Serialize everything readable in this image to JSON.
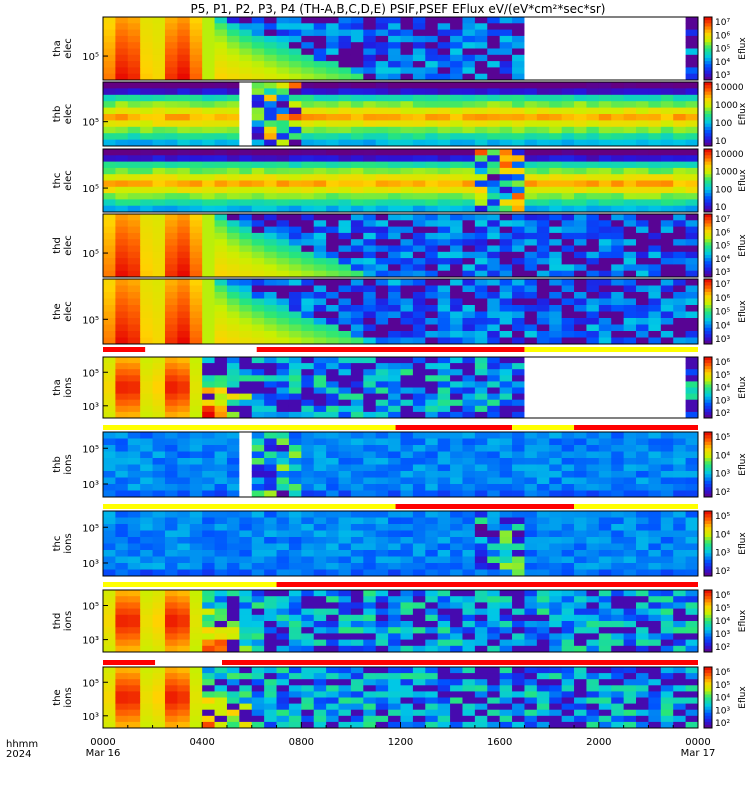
{
  "title": "P5, P1, P2, P3, P4 (TH-A,B,C,D,E) PSIF,PSEF EFlux eV/(eV*cm²*sec*sr)",
  "colorbar_label": "Eflux",
  "time_axis": {
    "row_labels": [
      "hhmm",
      "2024"
    ],
    "ticks": [
      {
        "t": 0,
        "label": "0000",
        "date": "Mar 16"
      },
      {
        "t": 4,
        "label": "0400",
        "date": ""
      },
      {
        "t": 8,
        "label": "0800",
        "date": ""
      },
      {
        "t": 12,
        "label": "1200",
        "date": ""
      },
      {
        "t": 16,
        "label": "1600",
        "date": ""
      },
      {
        "t": 20,
        "label": "2000",
        "date": ""
      },
      {
        "t": 24,
        "label": "0000",
        "date": "Mar 17"
      }
    ],
    "range_hours": [
      0,
      24
    ]
  },
  "chart_data": {
    "type": "heatmap",
    "x_unit": "hours UT, 2024 Mar 16 00:00 to Mar 17 00:00",
    "panels": [
      {
        "name": "tha elec",
        "probe": "tha",
        "species": "elec",
        "ylabel": [
          "tha",
          "elec"
        ],
        "yticks": [
          "10⁵"
        ],
        "cbar_ticks": [
          "10⁷",
          "10⁶",
          "10⁵",
          "10⁴",
          "10³"
        ],
        "cbar_range_log": [
          2.6,
          7.1
        ],
        "profile": "ringplasma",
        "gaps": [
          [
            17.0,
            23.4
          ]
        ]
      },
      {
        "name": "thb elec",
        "probe": "thb",
        "species": "elec",
        "ylabel": [
          "thb",
          "elec"
        ],
        "yticks": [
          "10⁵"
        ],
        "cbar_ticks": [
          "10000",
          "1000",
          "100",
          "10"
        ],
        "cbar_range_log": [
          0.8,
          4.6
        ],
        "profile": "solarwind",
        "gaps": [
          [
            5.7,
            5.9
          ],
          [
            8.0,
            8.2
          ],
          [
            17.0,
            17.2
          ]
        ],
        "noisy": [
          [
            5.9,
            8.0
          ]
        ]
      },
      {
        "name": "thc elec",
        "probe": "thc",
        "species": "elec",
        "ylabel": [
          "thc",
          "elec"
        ],
        "yticks": [
          "10⁵"
        ],
        "cbar_ticks": [
          "10000",
          "1000",
          "100",
          "10"
        ],
        "cbar_range_log": [
          0.8,
          4.6
        ],
        "profile": "solarwind",
        "gaps": [
          [
            17.0,
            17.2
          ]
        ],
        "noisy": [
          [
            15.0,
            17.0
          ]
        ]
      },
      {
        "name": "thd elec",
        "probe": "thd",
        "species": "elec",
        "ylabel": [
          "thd",
          "elec"
        ],
        "yticks": [
          "10⁵"
        ],
        "cbar_ticks": [
          "10⁷",
          "10⁶",
          "10⁵",
          "10⁴",
          "10³"
        ],
        "cbar_range_log": [
          2.6,
          7.1
        ],
        "profile": "ringplasma",
        "gaps": []
      },
      {
        "name": "the elec",
        "probe": "the",
        "species": "elec",
        "ylabel": [
          "the",
          "elec"
        ],
        "yticks": [
          "10⁵"
        ],
        "cbar_ticks": [
          "10⁷",
          "10⁶",
          "10⁵",
          "10⁴",
          "10³"
        ],
        "cbar_range_log": [
          2.6,
          7.1
        ],
        "profile": "ringplasma",
        "gaps": []
      },
      {
        "name": "tha ions",
        "probe": "tha",
        "species": "ions",
        "ylabel": [
          "tha",
          "ions"
        ],
        "yticks": [
          "10⁵",
          "10³"
        ],
        "cbar_ticks": [
          "10⁶",
          "10⁵",
          "10⁴",
          "10³",
          "10²"
        ],
        "cbar_range_log": [
          1.6,
          6.1
        ],
        "profile": "ringions",
        "gaps": [
          [
            17.0,
            23.4
          ]
        ]
      },
      {
        "name": "thb ions",
        "probe": "thb",
        "species": "ions",
        "ylabel": [
          "thb",
          "ions"
        ],
        "yticks": [
          "10⁵",
          "10³"
        ],
        "cbar_ticks": [
          "10⁵",
          "10⁴",
          "10³",
          "10²"
        ],
        "cbar_range_log": [
          1.6,
          5.6
        ],
        "profile": "windions",
        "gaps": [
          [
            5.7,
            5.9
          ],
          [
            8.0,
            8.2
          ]
        ],
        "noisy": [
          [
            5.9,
            8.0
          ]
        ]
      },
      {
        "name": "thc ions",
        "probe": "thc",
        "species": "ions",
        "ylabel": [
          "thc",
          "ions"
        ],
        "yticks": [
          "10⁵",
          "10³"
        ],
        "cbar_ticks": [
          "10⁵",
          "10⁴",
          "10³",
          "10²"
        ],
        "cbar_range_log": [
          1.6,
          5.6
        ],
        "profile": "windions",
        "gaps": [
          [
            17.0,
            17.2
          ]
        ],
        "noisy": [
          [
            15.0,
            17.0
          ]
        ]
      },
      {
        "name": "thd ions",
        "probe": "thd",
        "species": "ions",
        "ylabel": [
          "thd",
          "ions"
        ],
        "yticks": [
          "10⁵",
          "10³"
        ],
        "cbar_ticks": [
          "10⁶",
          "10⁵",
          "10⁴",
          "10³",
          "10²"
        ],
        "cbar_range_log": [
          1.6,
          6.1
        ],
        "profile": "ringions",
        "gaps": []
      },
      {
        "name": "the ions",
        "probe": "the",
        "species": "ions",
        "ylabel": [
          "the",
          "ions"
        ],
        "yticks": [
          "10⁵",
          "10³"
        ],
        "cbar_ticks": [
          "10⁶",
          "10⁵",
          "10⁴",
          "10³",
          "10²"
        ],
        "cbar_range_log": [
          1.6,
          6.1
        ],
        "profile": "ringions",
        "gaps": []
      }
    ],
    "mode_bars": [
      {
        "after_panel": "the elec",
        "segments": [
          {
            "from": 0,
            "to": 1.7,
            "color": "red"
          },
          {
            "from": 6.2,
            "to": 17.0,
            "color": "red"
          },
          {
            "from": 17.0,
            "to": 24,
            "color": "yellow"
          }
        ]
      },
      {
        "after_panel": "tha ions",
        "segments": [
          {
            "from": 0,
            "to": 11.8,
            "color": "yellow"
          },
          {
            "from": 11.8,
            "to": 16.5,
            "color": "red"
          },
          {
            "from": 16.5,
            "to": 19.0,
            "color": "yellow"
          },
          {
            "from": 19.0,
            "to": 24,
            "color": "red"
          }
        ]
      },
      {
        "after_panel": "thb ions",
        "segments": [
          {
            "from": 0,
            "to": 11.8,
            "color": "yellow"
          },
          {
            "from": 11.8,
            "to": 19.0,
            "color": "red"
          },
          {
            "from": 19.0,
            "to": 24,
            "color": "yellow"
          }
        ]
      },
      {
        "after_panel": "thc ions",
        "segments": [
          {
            "from": 0,
            "to": 7.0,
            "color": "yellow"
          },
          {
            "from": 7.0,
            "to": 24,
            "color": "red"
          }
        ]
      },
      {
        "after_panel": "thd ions",
        "segments": [
          {
            "from": 0,
            "to": 2.1,
            "color": "red"
          },
          {
            "from": 4.8,
            "to": 24,
            "color": "red"
          }
        ]
      }
    ]
  },
  "colors": {
    "red": "#ff0000",
    "yellow": "#ffff00"
  }
}
